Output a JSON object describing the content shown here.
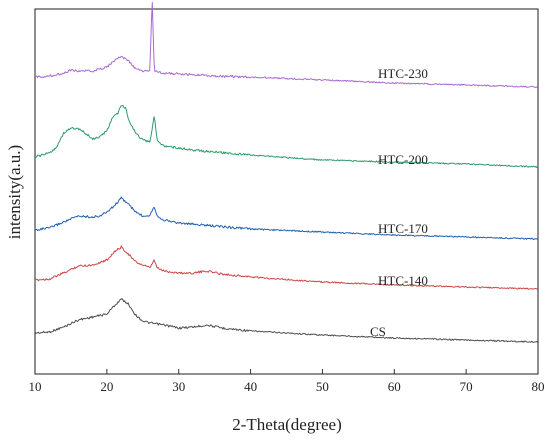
{
  "chart_data": {
    "type": "line",
    "title": "",
    "xlabel": "2-Theta(degree)",
    "ylabel": "intensity(a.u.)",
    "xlim": [
      10,
      80
    ],
    "xticks": [
      10,
      20,
      30,
      40,
      50,
      60,
      70,
      80
    ],
    "yticks_shown": false,
    "grid": false,
    "legend": "none (series labelled inline)",
    "series": [
      {
        "name": "CS",
        "color": "#4d4d4d",
        "points": [
          [
            10,
            0.0
          ],
          [
            12,
            0.01
          ],
          [
            14,
            0.06
          ],
          [
            16,
            0.13
          ],
          [
            18,
            0.16
          ],
          [
            20,
            0.19
          ],
          [
            21,
            0.27
          ],
          [
            22,
            0.34
          ],
          [
            23,
            0.29
          ],
          [
            24,
            0.18
          ],
          [
            25,
            0.12
          ],
          [
            26,
            0.1
          ],
          [
            28,
            0.08
          ],
          [
            30,
            0.05
          ],
          [
            32,
            0.06
          ],
          [
            34,
            0.08
          ],
          [
            36,
            0.05
          ],
          [
            40,
            0.02
          ],
          [
            45,
            0.0
          ],
          [
            50,
            -0.02
          ],
          [
            60,
            -0.05
          ],
          [
            70,
            -0.07
          ],
          [
            80,
            -0.09
          ]
        ]
      },
      {
        "name": "HTC-140",
        "color": "#cc4444",
        "points": [
          [
            10,
            0.0
          ],
          [
            12,
            0.01
          ],
          [
            14,
            0.07
          ],
          [
            16,
            0.14
          ],
          [
            18,
            0.15
          ],
          [
            20,
            0.2
          ],
          [
            21,
            0.28
          ],
          [
            22,
            0.33
          ],
          [
            23,
            0.26
          ],
          [
            24,
            0.18
          ],
          [
            26,
            0.12
          ],
          [
            26.6,
            0.2
          ],
          [
            27,
            0.12
          ],
          [
            28,
            0.09
          ],
          [
            30,
            0.07
          ],
          [
            32,
            0.07
          ],
          [
            34,
            0.09
          ],
          [
            36,
            0.06
          ],
          [
            40,
            0.03
          ],
          [
            50,
            -0.02
          ],
          [
            60,
            -0.05
          ],
          [
            70,
            -0.07
          ],
          [
            80,
            -0.09
          ]
        ]
      },
      {
        "name": "HTC-170",
        "color": "#1f5fb0",
        "points": [
          [
            10,
            0.0
          ],
          [
            12,
            0.02
          ],
          [
            14,
            0.08
          ],
          [
            16,
            0.14
          ],
          [
            18,
            0.13
          ],
          [
            19,
            0.14
          ],
          [
            20,
            0.18
          ],
          [
            21,
            0.24
          ],
          [
            22,
            0.32
          ],
          [
            23,
            0.26
          ],
          [
            24,
            0.18
          ],
          [
            25,
            0.14
          ],
          [
            26,
            0.15
          ],
          [
            26.6,
            0.24
          ],
          [
            27,
            0.14
          ],
          [
            28,
            0.1
          ],
          [
            30,
            0.07
          ],
          [
            35,
            0.04
          ],
          [
            40,
            0.01
          ],
          [
            50,
            -0.02
          ],
          [
            60,
            -0.05
          ],
          [
            70,
            -0.07
          ],
          [
            80,
            -0.09
          ]
        ]
      },
      {
        "name": "HTC-200",
        "color": "#2e9a68",
        "points": [
          [
            10,
            0.0
          ],
          [
            12,
            0.04
          ],
          [
            13,
            0.1
          ],
          [
            14,
            0.24
          ],
          [
            15,
            0.29
          ],
          [
            16,
            0.28
          ],
          [
            17,
            0.24
          ],
          [
            18,
            0.18
          ],
          [
            19,
            0.2
          ],
          [
            20,
            0.26
          ],
          [
            20.8,
            0.4
          ],
          [
            21.5,
            0.43
          ],
          [
            22,
            0.52
          ],
          [
            22.6,
            0.49
          ],
          [
            23,
            0.38
          ],
          [
            24,
            0.24
          ],
          [
            25,
            0.17
          ],
          [
            26,
            0.15
          ],
          [
            26.6,
            0.42
          ],
          [
            27,
            0.16
          ],
          [
            28,
            0.11
          ],
          [
            30,
            0.09
          ],
          [
            32,
            0.07
          ],
          [
            35,
            0.05
          ],
          [
            40,
            0.02
          ],
          [
            50,
            -0.03
          ],
          [
            60,
            -0.05
          ],
          [
            70,
            -0.07
          ],
          [
            80,
            -0.1
          ]
        ]
      },
      {
        "name": "HTC-230",
        "color": "#a86ad0",
        "points": [
          [
            10,
            0.0
          ],
          [
            12,
            0.01
          ],
          [
            14,
            0.04
          ],
          [
            15,
            0.07
          ],
          [
            16,
            0.06
          ],
          [
            18,
            0.06
          ],
          [
            20,
            0.1
          ],
          [
            21,
            0.16
          ],
          [
            22,
            0.21
          ],
          [
            23,
            0.16
          ],
          [
            24,
            0.08
          ],
          [
            25,
            0.06
          ],
          [
            26,
            0.06
          ],
          [
            26.3,
            0.8
          ],
          [
            26.6,
            0.06
          ],
          [
            27,
            0.05
          ],
          [
            28,
            0.04
          ],
          [
            30,
            0.03
          ],
          [
            35,
            0.01
          ],
          [
            40,
            0.0
          ],
          [
            50,
            -0.03
          ],
          [
            60,
            -0.06
          ],
          [
            70,
            -0.08
          ],
          [
            80,
            -0.1
          ]
        ]
      }
    ]
  }
}
